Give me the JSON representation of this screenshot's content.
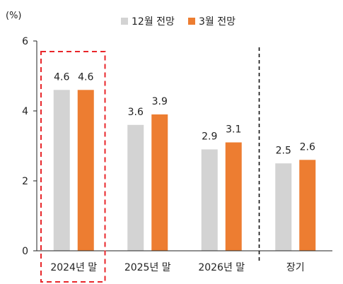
{
  "chart_data": {
    "type": "bar",
    "y_unit_label": "(%)",
    "categories": [
      "2024년 말",
      "2025년 말",
      "2026년 말",
      "장기"
    ],
    "series": [
      {
        "name": "12월 전망",
        "color": "#d3d3d3",
        "values": [
          4.6,
          3.6,
          2.9,
          2.5
        ],
        "labels": [
          "4.6",
          "3.6",
          "2.9",
          "2.5"
        ]
      },
      {
        "name": "3월 전망",
        "color": "#ed7d31",
        "values": [
          4.6,
          3.9,
          3.1,
          2.6
        ],
        "labels": [
          "4.6",
          "3.9",
          "3.1",
          "2.6"
        ]
      }
    ],
    "ylim": [
      0,
      6
    ],
    "y_ticks": [
      "0",
      "2",
      "4",
      "6"
    ],
    "legend_position": "top",
    "grid": false,
    "highlight_category_index": 0,
    "highlight_color": "#e8262a",
    "separator_before_index": 3
  }
}
